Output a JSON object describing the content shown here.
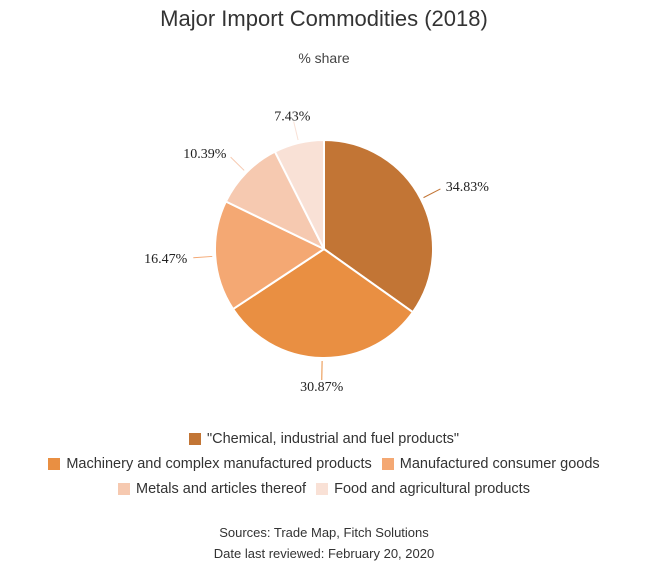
{
  "chart_data": {
    "type": "pie",
    "title": "Major Import Commodities (2018)",
    "subtitle": "% share",
    "categories": [
      "\"Chemical, industrial and fuel products\"",
      "Machinery and complex manufactured products",
      "Manufactured consumer goods",
      "Metals and articles thereof",
      "Food and agricultural products"
    ],
    "values": [
      34.83,
      30.87,
      16.47,
      10.39,
      7.43
    ],
    "value_labels": [
      "34.83%",
      "30.87%",
      "16.47%",
      "10.39%",
      "7.43%"
    ],
    "colors": [
      "#c27535",
      "#e98f42",
      "#f4a873",
      "#f6c9b0",
      "#f9e1d6"
    ],
    "legend": "bottom",
    "start_angle_deg": 0,
    "direction": "clockwise"
  },
  "footer": {
    "sources": "Sources: Trade Map, Fitch Solutions",
    "reviewed": "Date last reviewed: February 20, 2020"
  }
}
